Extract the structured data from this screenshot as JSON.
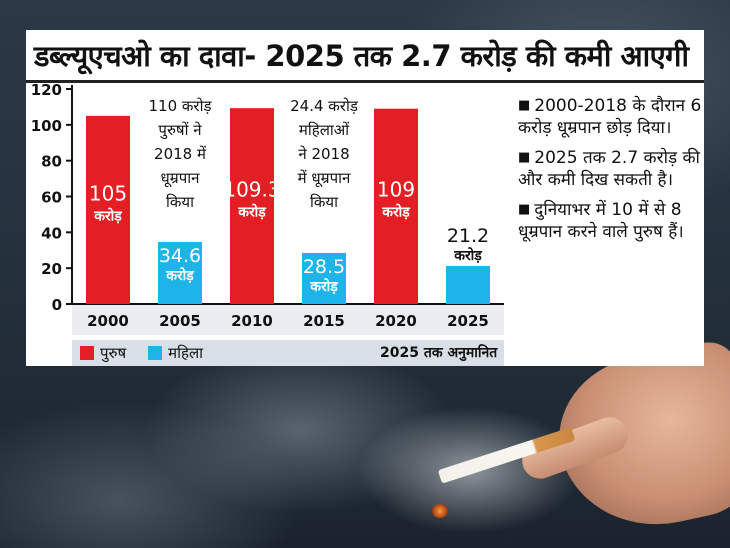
{
  "title": "डब्ल्यूएचओ का दावा- 2025 तक 2.7 करोड़ की कमी आएगी",
  "colors": {
    "men": "#e31e24",
    "women": "#1eb4ea"
  },
  "chart_data": {
    "type": "bar",
    "categories": [
      "2000",
      "2005",
      "2010",
      "2015",
      "2020",
      "2025"
    ],
    "ylim": [
      0,
      120
    ],
    "yticks": [
      "0",
      "20",
      "40",
      "60",
      "80",
      "100",
      "120"
    ],
    "bars": [
      {
        "category": "2000",
        "series": "पुरुष",
        "value": 105,
        "label": "105",
        "unit": "करोड़"
      },
      {
        "category": "2005",
        "series": "महिला",
        "value": 34.6,
        "label": "34.6",
        "unit": "करोड़"
      },
      {
        "category": "2010",
        "series": "पुरुष",
        "value": 109.3,
        "label": "109.3",
        "unit": "करोड़"
      },
      {
        "category": "2015",
        "series": "महिला",
        "value": 28.5,
        "label": "28.5",
        "unit": "करोड़"
      },
      {
        "category": "2020",
        "series": "पुरुष",
        "value": 109,
        "label": "109",
        "unit": "करोड़"
      },
      {
        "category": "2025",
        "series": "महिला",
        "value": 21.2,
        "label": "21.2",
        "unit": "करोड़"
      }
    ],
    "annotations": [
      {
        "after": "2000",
        "lines": [
          "110 करोड़",
          "पुरुषों ने",
          "2018 में",
          "धूम्रपान",
          "किया"
        ]
      },
      {
        "after": "2010",
        "lines": [
          "24.4 करोड़",
          "महिलाओं",
          "ने 2018",
          "में धूम्रपान",
          "किया"
        ]
      }
    ],
    "legend": [
      {
        "name": "पुरुष",
        "color": "#e31e24"
      },
      {
        "name": "महिला",
        "color": "#1eb4ea"
      }
    ],
    "legend_note": "2025 तक अनुमानित"
  },
  "notes": [
    "2000-2018 के दौरान 6 करोड़ धूम्रपान छोड़ दिया।",
    "2025 तक 2.7 करोड़ की और कमी दिख सकती है।",
    "दुनियाभर में 10 में से 8 धूम्रपान करने वाले पुरुष हैं।"
  ]
}
